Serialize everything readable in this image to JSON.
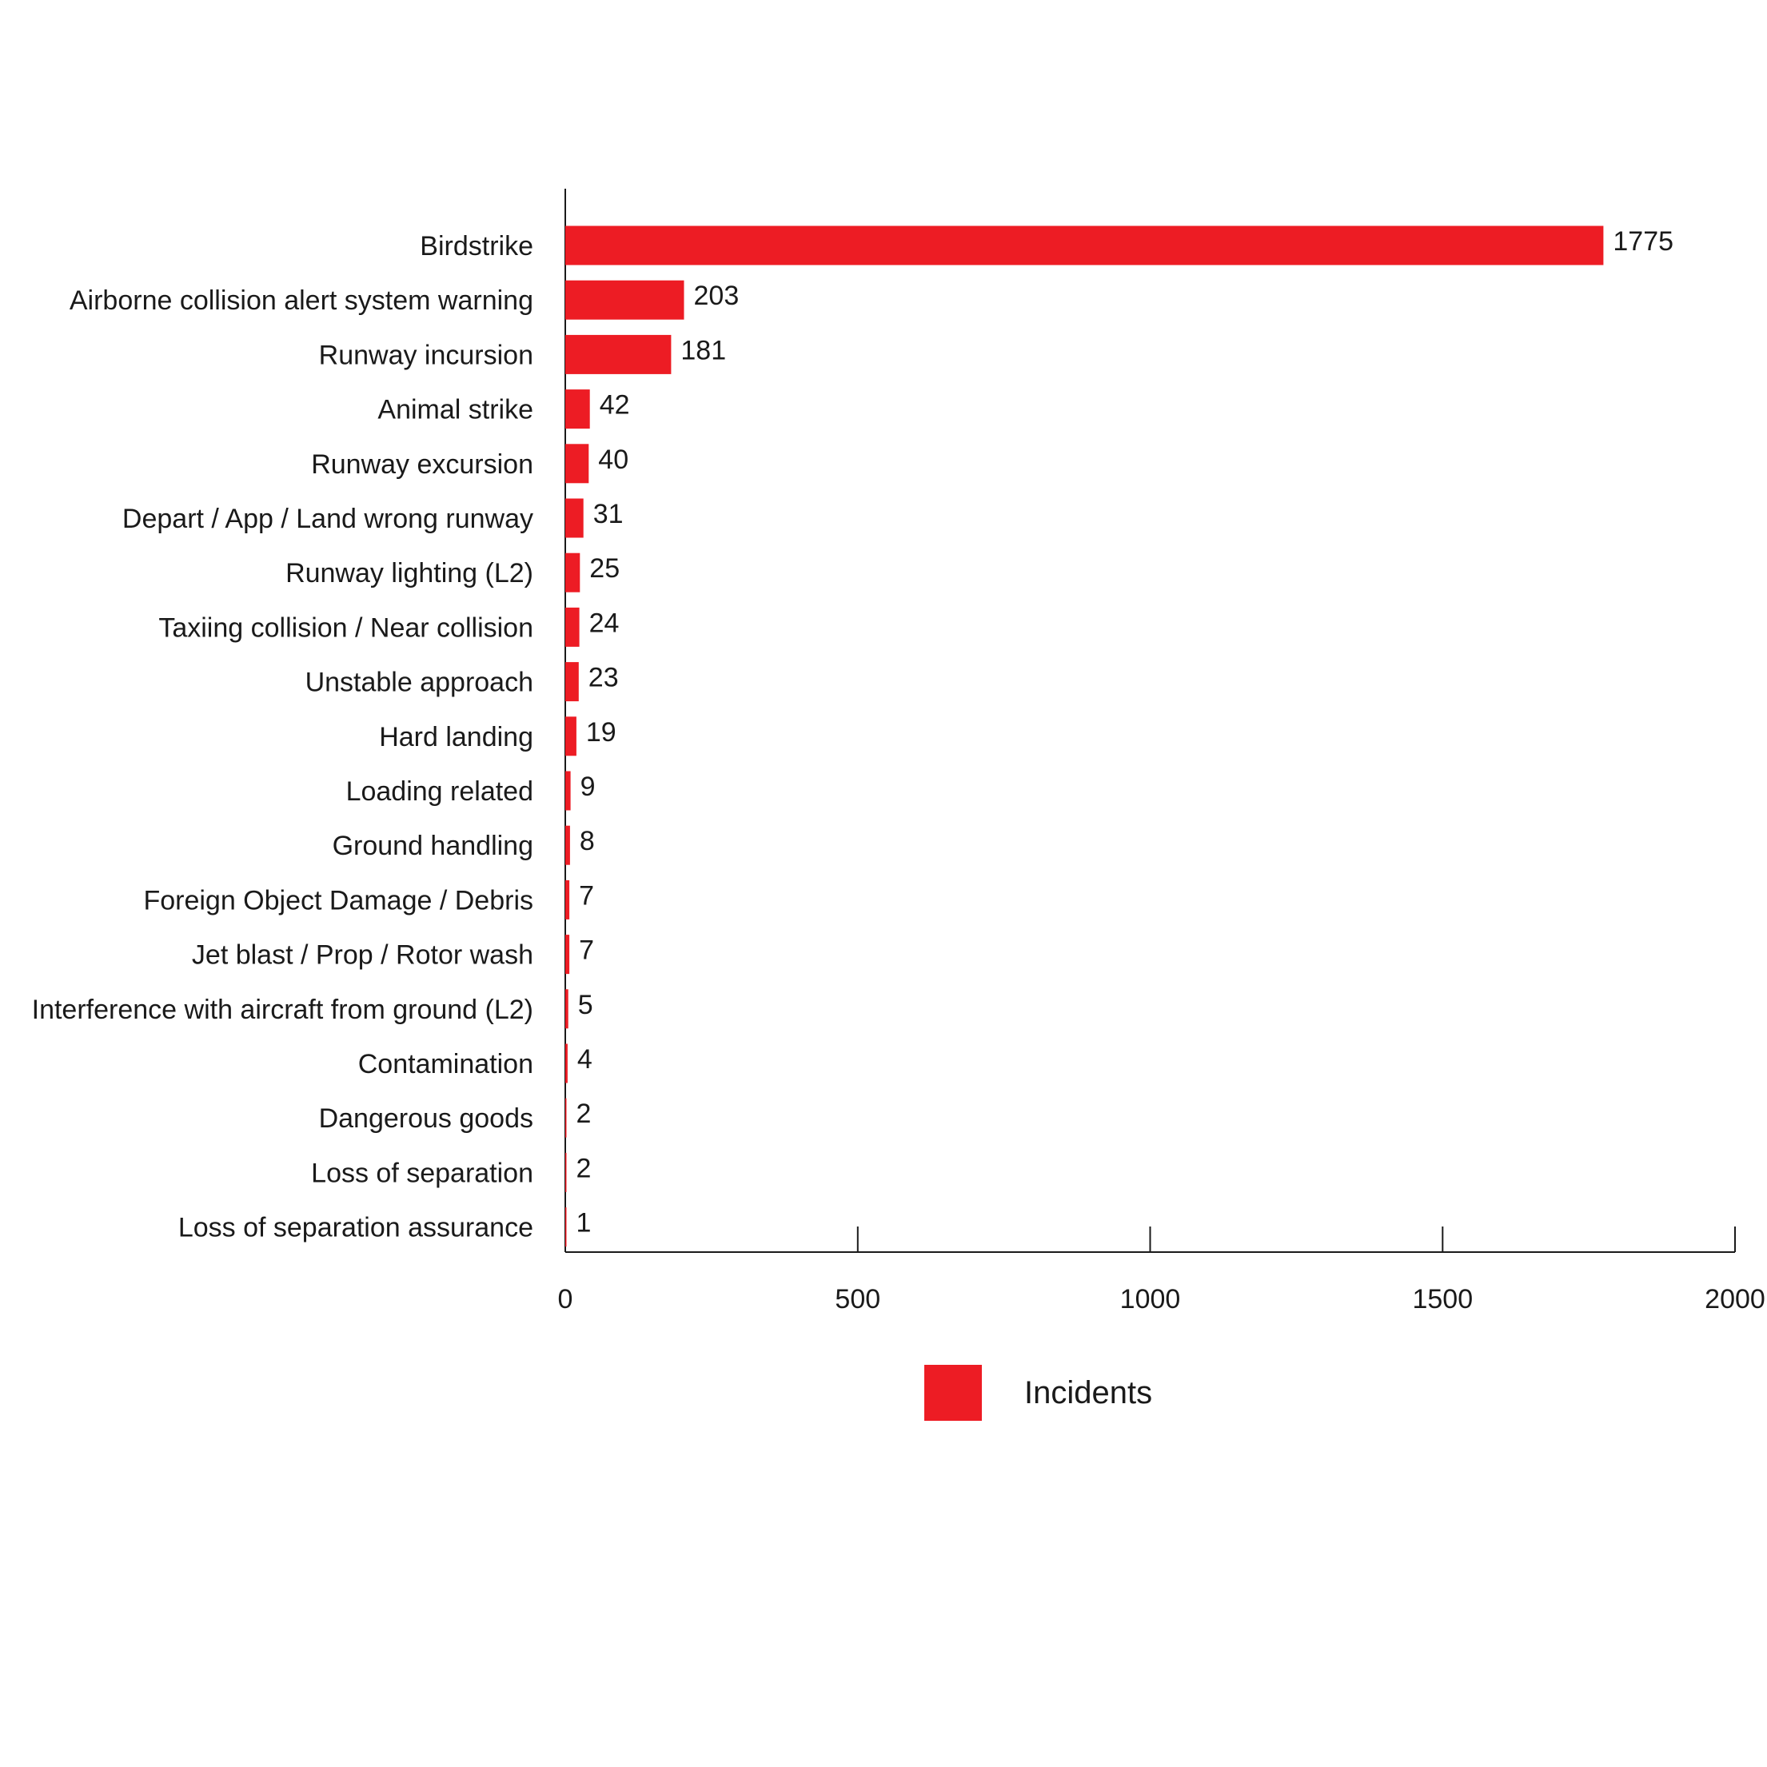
{
  "chart_data": {
    "type": "bar",
    "orientation": "horizontal",
    "categories": [
      "Birdstrike",
      "Airborne collision alert system warning",
      "Runway incursion",
      "Animal strike",
      "Runway excursion",
      "Depart / App / Land wrong runway",
      "Runway lighting (L2)",
      "Taxiing collision / Near collision",
      "Unstable approach",
      "Hard landing",
      "Loading related",
      "Ground handling",
      "Foreign Object Damage / Debris",
      "Jet blast / Prop / Rotor wash",
      "Interference with aircraft from ground (L2)",
      "Contamination",
      "Dangerous goods",
      "Loss of separation",
      "Loss of separation assurance"
    ],
    "series": [
      {
        "name": "Incidents",
        "values": [
          1775,
          203,
          181,
          42,
          40,
          31,
          25,
          24,
          23,
          19,
          9,
          8,
          7,
          7,
          5,
          4,
          2,
          2,
          1
        ],
        "color": "#ed1c24"
      }
    ],
    "xticks": [
      "0",
      "500",
      "1000",
      "1500",
      "2000"
    ],
    "xlim": [
      0,
      2000
    ],
    "title": "",
    "xlabel": "",
    "ylabel": "",
    "legend": {
      "position": "bottom-center",
      "label": "Incidents"
    },
    "grid": false
  }
}
